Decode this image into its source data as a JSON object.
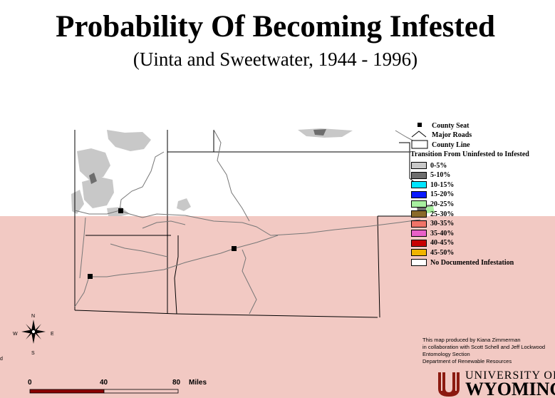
{
  "title": "Probability Of Becoming Infested",
  "subtitle": "(Uinta and Sweetwater, 1944 - 1996)",
  "legend": {
    "county_seat": "County Seat",
    "major_roads": "Major Roads",
    "county_line": "County Line",
    "transition_header": "Transition From Uninfested to Infested",
    "classes": [
      {
        "label": "0-5%",
        "color": "#c8c8c8"
      },
      {
        "label": "5-10%",
        "color": "#6e6e6e"
      },
      {
        "label": "10-15%",
        "color": "#00e5ff"
      },
      {
        "label": "15-20%",
        "color": "#0a1aff"
      },
      {
        "label": "20-25%",
        "color": "#a8f0a0"
      },
      {
        "label": "25-30%",
        "color": "#8a6a2a"
      },
      {
        "label": "30-35%",
        "color": "#f07468"
      },
      {
        "label": "35-40%",
        "color": "#e860c8"
      },
      {
        "label": "40-45%",
        "color": "#c80000"
      },
      {
        "label": "45-50%",
        "color": "#f0b400"
      },
      {
        "label": "No Documented Infestation",
        "color": "#ffffff"
      }
    ]
  },
  "credits": [
    "This map produced by Kiana Zimmerman",
    "in collaboration with Scott Schell and Jeff Lockwood",
    "Entomology Section",
    "Department of Renewable Resources"
  ],
  "logo": {
    "university": "UNIVERSITY OF",
    "wyoming": "WYOMING"
  },
  "compass": {
    "n": "N",
    "s": "S",
    "e": "E",
    "w": "W"
  },
  "scale": {
    "ticks": [
      "0",
      "40",
      "80"
    ],
    "unit": "Miles"
  },
  "stray_mark": "d",
  "colors": {
    "band": "#f2c9c3",
    "infest_light": "#c8c8c8",
    "infest_dark": "#6e6e6e"
  }
}
